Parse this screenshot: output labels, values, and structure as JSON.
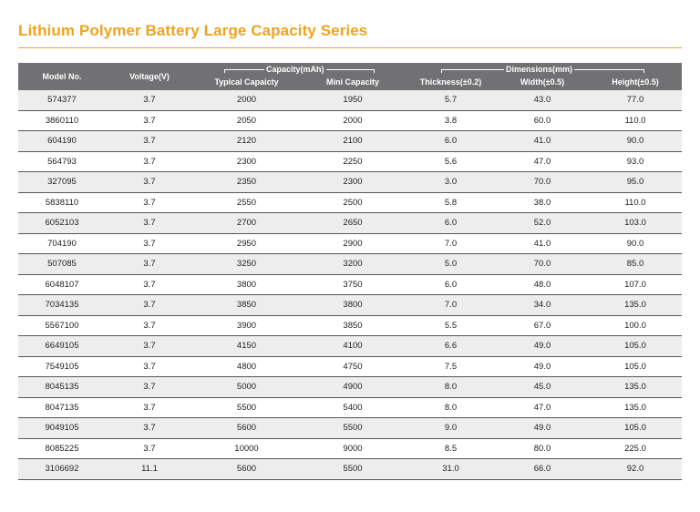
{
  "title": "Lithium Polymer Battery Large Capacity Series",
  "table": {
    "headers": {
      "model": "Model No.",
      "voltage": "Voltage(V)",
      "capacity_group": "Capacity(mAh)",
      "typical": "Typical Capaicty",
      "mini": "Mini Capacity",
      "dimensions_group": "Dimensions(mm)",
      "thickness": "Thickness(±0.2)",
      "width": "Width(±0.5)",
      "height": "Height(±0.5)"
    },
    "rows": [
      [
        "574377",
        "3.7",
        "2000",
        "1950",
        "5.7",
        "43.0",
        "77.0"
      ],
      [
        "3860110",
        "3.7",
        "2050",
        "2000",
        "3.8",
        "60.0",
        "110.0"
      ],
      [
        "604190",
        "3.7",
        "2120",
        "2100",
        "6.0",
        "41.0",
        "90.0"
      ],
      [
        "564793",
        "3.7",
        "2300",
        "2250",
        "5.6",
        "47.0",
        "93.0"
      ],
      [
        "327095",
        "3.7",
        "2350",
        "2300",
        "3.0",
        "70.0",
        "95.0"
      ],
      [
        "5838110",
        "3.7",
        "2550",
        "2500",
        "5.8",
        "38.0",
        "110.0"
      ],
      [
        "6052103",
        "3.7",
        "2700",
        "2650",
        "6.0",
        "52.0",
        "103.0"
      ],
      [
        "704190",
        "3.7",
        "2950",
        "2900",
        "7.0",
        "41.0",
        "90.0"
      ],
      [
        "507085",
        "3.7",
        "3250",
        "3200",
        "5.0",
        "70.0",
        "85.0"
      ],
      [
        "6048107",
        "3.7",
        "3800",
        "3750",
        "6.0",
        "48.0",
        "107.0"
      ],
      [
        "7034135",
        "3.7",
        "3850",
        "3800",
        "7.0",
        "34.0",
        "135.0"
      ],
      [
        "5567100",
        "3.7",
        "3900",
        "3850",
        "5.5",
        "67.0",
        "100.0"
      ],
      [
        "6649105",
        "3.7",
        "4150",
        "4100",
        "6.6",
        "49.0",
        "105.0"
      ],
      [
        "7549105",
        "3.7",
        "4800",
        "4750",
        "7.5",
        "49.0",
        "105.0"
      ],
      [
        "8045135",
        "3.7",
        "5000",
        "4900",
        "8.0",
        "45.0",
        "135.0"
      ],
      [
        "8047135",
        "3.7",
        "5500",
        "5400",
        "8.0",
        "47.0",
        "135.0"
      ],
      [
        "9049105",
        "3.7",
        "5600",
        "5500",
        "9.0",
        "49.0",
        "105.0"
      ],
      [
        "8085225",
        "3.7",
        "10000",
        "9000",
        "8.5",
        "80.0",
        "225.0"
      ],
      [
        "3106692",
        "11.1",
        "5600",
        "5500",
        "31.0",
        "66.0",
        "92.0"
      ]
    ]
  },
  "colors": {
    "accent": "#f0a31b",
    "header_bg": "#717174",
    "row_alt": "#ededee"
  }
}
